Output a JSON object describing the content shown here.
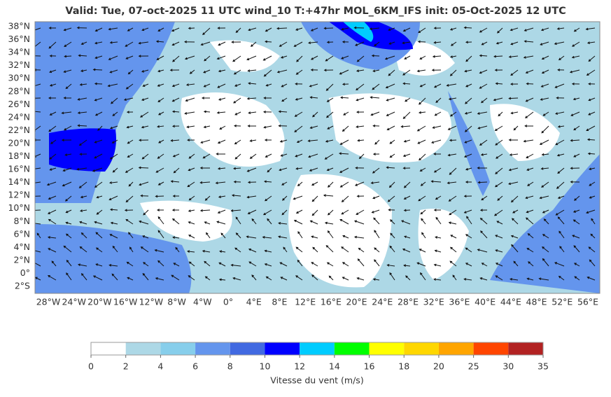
{
  "header": {
    "title": "Valid: Tue, 07-oct-2025   11 UTC   wind_10   T:+47hr   MOL_6KM_IFS   init: 05-Oct-2025    12 UTC"
  },
  "map": {
    "lat_labels": [
      "38°N",
      "36°N",
      "34°N",
      "32°N",
      "30°N",
      "28°N",
      "26°N",
      "24°N",
      "22°N",
      "20°N",
      "18°N",
      "16°N",
      "14°N",
      "12°N",
      "10°N",
      "8°N",
      "6°N",
      "4°N",
      "2°N",
      "0°",
      "2°S"
    ],
    "lon_labels": [
      "28°W",
      "24°W",
      "20°W",
      "16°W",
      "12°W",
      "8°W",
      "4°W",
      "0°",
      "4°E",
      "8°E",
      "12°E",
      "16°E",
      "20°E",
      "24°E",
      "28°E",
      "32°E",
      "36°E",
      "40°E",
      "44°E",
      "48°E",
      "52°E",
      "56°E"
    ]
  },
  "colorbar": {
    "label": "Vitesse du vent (m/s)",
    "ticks": [
      0,
      2,
      4,
      6,
      8,
      10,
      12,
      14,
      16,
      18,
      20,
      25,
      30,
      35
    ],
    "colors": [
      "#ffffff",
      "#add8e6",
      "#87ceeb",
      "#6495ed",
      "#4169e1",
      "#0000ff",
      "#00ccff",
      "#00ff00",
      "#ffff00",
      "#ffd700",
      "#ffa500",
      "#ff4500",
      "#b22222"
    ]
  }
}
